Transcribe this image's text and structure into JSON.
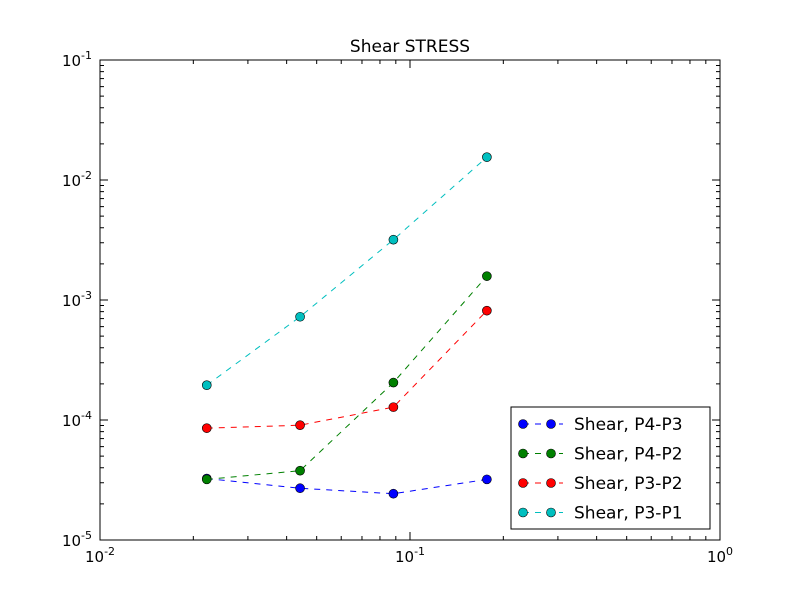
{
  "chart_data": {
    "type": "line",
    "title": "Shear STRESS",
    "xlabel": "",
    "ylabel": "",
    "xscale": "log",
    "yscale": "log",
    "xlim": [
      0.01,
      1
    ],
    "ylim": [
      1e-05,
      0.1
    ],
    "x_ticks": [
      {
        "base": "10",
        "exp": "-2",
        "value": 0.01
      },
      {
        "base": "10",
        "exp": "-1",
        "value": 0.1
      },
      {
        "base": "10",
        "exp": "0",
        "value": 1
      }
    ],
    "y_ticks": [
      {
        "base": "10",
        "exp": "-5",
        "value": 1e-05
      },
      {
        "base": "10",
        "exp": "-4",
        "value": 0.0001
      },
      {
        "base": "10",
        "exp": "-3",
        "value": 0.001
      },
      {
        "base": "10",
        "exp": "-2",
        "value": 0.01
      },
      {
        "base": "10",
        "exp": "-1",
        "value": 0.1
      }
    ],
    "grid": false,
    "legend_position": "lower-right",
    "x": [
      0.0221,
      0.0442,
      0.0884,
      0.177
    ],
    "series": [
      {
        "name": "Shear, P4-P3",
        "color": "#0000ff",
        "values": [
          3.25e-05,
          2.7e-05,
          2.43e-05,
          3.2e-05
        ]
      },
      {
        "name": "Shear, P4-P2",
        "color": "#008000",
        "values": [
          3.2e-05,
          3.78e-05,
          0.000205,
          0.00158
        ]
      },
      {
        "name": "Shear, P3-P2",
        "color": "#ff0000",
        "values": [
          8.55e-05,
          9.05e-05,
          0.000128,
          0.000815
        ]
      },
      {
        "name": "Shear, P3-P1",
        "color": "#00bfbf",
        "values": [
          0.000195,
          0.000725,
          0.00318,
          0.0155
        ]
      }
    ]
  }
}
